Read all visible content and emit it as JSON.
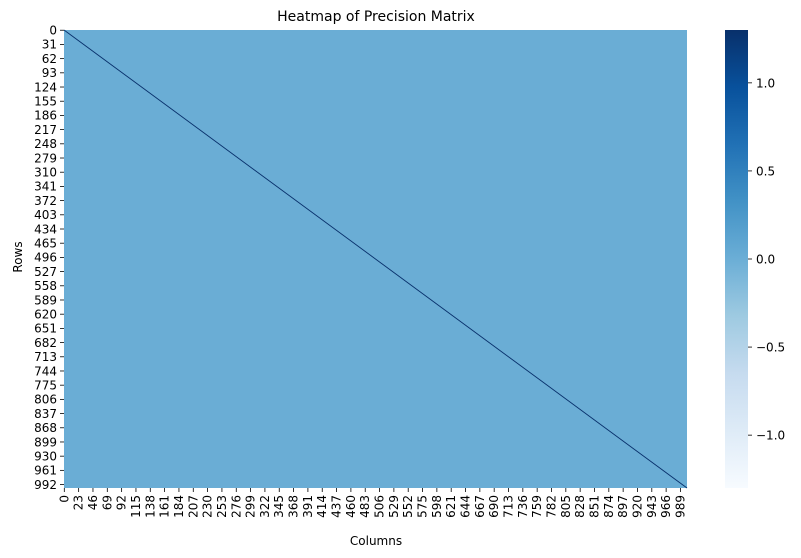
{
  "chart_data": {
    "type": "heatmap",
    "title": "Heatmap of Precision Matrix",
    "xlabel": "Columns",
    "ylabel": "Rows",
    "matrix_size": 1000,
    "background_value": 0.0,
    "diagonal_value": 1.3,
    "x_tick_labels": [
      "0",
      "23",
      "46",
      "69",
      "92",
      "115",
      "138",
      "161",
      "184",
      "207",
      "230",
      "253",
      "276",
      "299",
      "322",
      "345",
      "368",
      "391",
      "414",
      "437",
      "460",
      "483",
      "506",
      "529",
      "552",
      "575",
      "598",
      "621",
      "644",
      "667",
      "690",
      "713",
      "736",
      "759",
      "782",
      "805",
      "828",
      "851",
      "874",
      "897",
      "920",
      "943",
      "966",
      "989"
    ],
    "y_tick_labels": [
      "0",
      "31",
      "62",
      "93",
      "124",
      "155",
      "186",
      "217",
      "248",
      "279",
      "310",
      "341",
      "372",
      "403",
      "434",
      "465",
      "496",
      "527",
      "558",
      "589",
      "620",
      "651",
      "682",
      "713",
      "744",
      "775",
      "806",
      "837",
      "868",
      "899",
      "930",
      "961",
      "992"
    ],
    "colorbar": {
      "min": -1.3,
      "max": 1.3,
      "ticks": [
        -1.0,
        -0.5,
        0.0,
        0.5,
        1.0
      ],
      "tick_labels": [
        "−1.0",
        "−0.5",
        "0.0",
        "0.5",
        "1.0"
      ],
      "colormap": "Blues",
      "colors": [
        "#f7fbff",
        "#deebf7",
        "#c6dbef",
        "#9ecae1",
        "#6baed6",
        "#4292c6",
        "#2171b5",
        "#08519c",
        "#08306b"
      ]
    },
    "cell_color": "#6aadd5",
    "diagonal_color": "#08306b"
  }
}
